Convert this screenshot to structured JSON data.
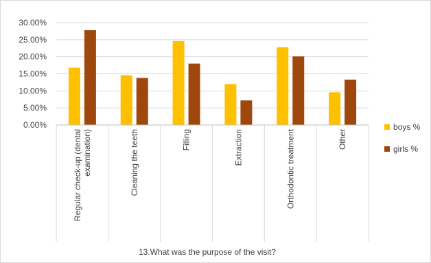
{
  "chart_data": {
    "type": "bar",
    "title": "",
    "xlabel": "13.What was the purpose of the visit?",
    "ylabel": "",
    "categories": [
      [
        "Regular check-up (dental",
        "examination)"
      ],
      [
        "Cleaning the teeth"
      ],
      [
        "Filling"
      ],
      [
        "Extraction"
      ],
      [
        "Orthodontic treatment"
      ],
      [
        "Other"
      ]
    ],
    "series": [
      {
        "name": "boys %",
        "color": "#FFC000",
        "values": [
          16.8,
          14.6,
          24.6,
          12.0,
          22.8,
          9.6
        ]
      },
      {
        "name": "girls %",
        "color": "#9E480E",
        "values": [
          27.8,
          13.8,
          18.0,
          7.2,
          20.1,
          13.3
        ]
      }
    ],
    "ylim": [
      0,
      30
    ],
    "yticks": [
      0,
      5,
      10,
      15,
      20,
      25,
      30
    ],
    "ytick_labels": [
      "0.00%",
      "5.00%",
      "10.00%",
      "15.00%",
      "20.00%",
      "25.00%",
      "30.00%"
    ],
    "grid": true,
    "legend_position": "right"
  }
}
